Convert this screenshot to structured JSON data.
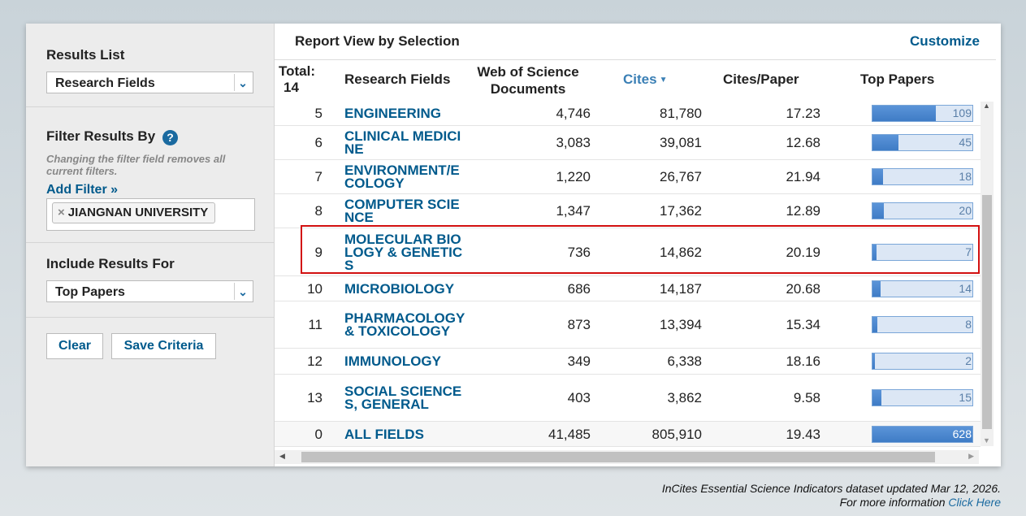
{
  "sidebar": {
    "results_list": {
      "label": "Results List",
      "selected": "Research Fields"
    },
    "filter": {
      "label": "Filter Results By",
      "help": "?",
      "note": "Changing the filter field removes all current filters.",
      "add": "Add Filter »",
      "chip_remove": "×",
      "chip": "JIANGNAN UNIVERSITY"
    },
    "include": {
      "label": "Include Results For",
      "selected": "Top Papers"
    },
    "buttons": [
      "Clear",
      "Save Criteria"
    ]
  },
  "report": {
    "title": "Report View by Selection",
    "customize": "Customize",
    "columns": {
      "total": "Total:",
      "total_count": 14,
      "field": "Research Fields",
      "documents": "Web of Science Documents",
      "cites": "Cites",
      "cites_per_paper": "Cites/Paper",
      "top_papers": "Top Papers"
    },
    "rows": [
      [
        5,
        "ENGINEERING",
        "4,746",
        "81,780",
        "17.23",
        109
      ],
      [
        6,
        "CLINICAL MEDICINE",
        "3,083",
        "39,081",
        "12.68",
        45
      ],
      [
        7,
        "ENVIRONMENT/ECOLOGY",
        "1,220",
        "26,767",
        "21.94",
        18
      ],
      [
        8,
        "COMPUTER SCIENCE",
        "1,347",
        "17,362",
        "12.89",
        20
      ],
      [
        9,
        "MOLECULAR BIOLOGY & GENETICS",
        "736",
        "14,862",
        "20.19",
        7
      ],
      [
        10,
        "MICROBIOLOGY",
        "686",
        "14,187",
        "20.68",
        14
      ],
      [
        11,
        "PHARMACOLOGY & TOXICOLOGY",
        "873",
        "13,394",
        "15.34",
        8
      ],
      [
        12,
        "IMMUNOLOGY",
        "349",
        "6,338",
        "18.16",
        2
      ],
      [
        13,
        "SOCIAL SCIENCES, GENERAL",
        "403",
        "3,862",
        "9.58",
        15
      ],
      [
        0,
        "ALL FIELDS",
        "41,485",
        "805,910",
        "19.43",
        628
      ]
    ]
  },
  "footer": {
    "updated": "InCites Essential Science Indicators dataset updated Mar 12, 2026.",
    "more": "For more information",
    "link": "Click Here"
  }
}
